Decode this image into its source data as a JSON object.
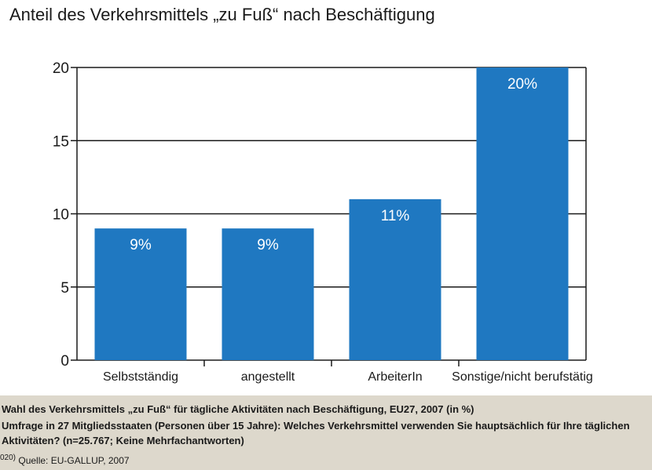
{
  "chart_data": {
    "type": "bar",
    "title": "Anteil des Verkehrsmittels „zu Fuß“ nach Beschäftigung",
    "categories": [
      "Selbstständig",
      "angestellt",
      "ArbeiterIn",
      "Sonstige/nicht berufstätig"
    ],
    "values": [
      9,
      9,
      11,
      20
    ],
    "data_labels": [
      "9%",
      "9%",
      "11%",
      "20%"
    ],
    "xlabel": "",
    "ylabel": "",
    "ylim": [
      0,
      20
    ],
    "yticks": [
      "0",
      "5",
      "10",
      "15",
      "20"
    ],
    "grid": true,
    "bar_color": "#1f78c1"
  },
  "caption": {
    "line1": "Wahl des Verkehrsmittels „zu Fuß“ für tägliche Aktivitäten nach Beschäftigung, EU27, 2007 (in %)",
    "line2": "Umfrage in 27 Mitgliedsstaaten (Personen über 15 Jahre): Welches Verkehrsmittel verwenden Sie hauptsächlich für Ihre täglichen",
    "line3": "Aktivitäten? (n=25.767; Keine Mehrfachantworten)",
    "footnote": "020)",
    "source": "Quelle: EU-GALLUP, 2007"
  }
}
